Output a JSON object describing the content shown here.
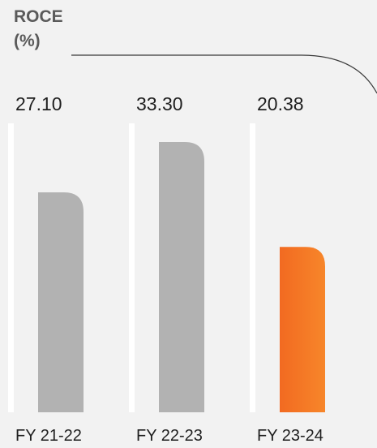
{
  "chart_data": {
    "type": "bar",
    "title_line1": "ROCE",
    "title_line2": "(%)",
    "categories": [
      "FY 21-22",
      "FY 22-23",
      "FY 23-24"
    ],
    "values": [
      27.1,
      33.3,
      20.38
    ],
    "value_labels": [
      "27.10",
      "33.30",
      "20.38"
    ],
    "ylim": [
      0,
      40
    ],
    "grid": false,
    "bar_colors": [
      "#b2b2b2",
      "#b2b2b2",
      "#f47623"
    ],
    "highlight_color": "#f47623",
    "base_color": "#b2b2b2",
    "guide_color": "#ffffff",
    "bg_color": "#f2f2f2",
    "line_color": "#3a3a3a"
  }
}
